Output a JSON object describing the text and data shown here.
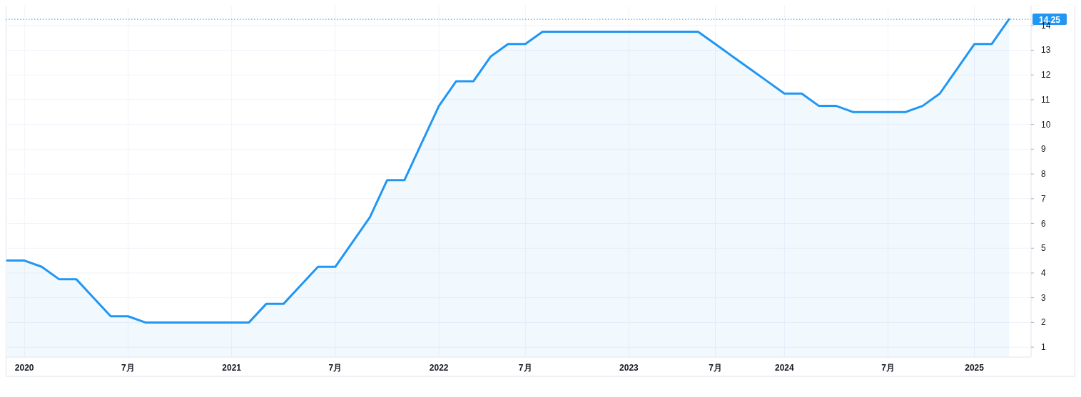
{
  "chart_data": {
    "type": "area",
    "color": "#2196f3",
    "categories": [
      null,
      "2020",
      null,
      null,
      null,
      null,
      null,
      "7月",
      null,
      null,
      null,
      null,
      null,
      "2021",
      null,
      null,
      null,
      null,
      null,
      "7月",
      null,
      null,
      null,
      null,
      null,
      "2022",
      null,
      null,
      null,
      null,
      "7月",
      null,
      null,
      null,
      null,
      null,
      "2023",
      null,
      null,
      null,
      null,
      "7月",
      null,
      null,
      null,
      "2024",
      null,
      null,
      null,
      null,
      null,
      "7月",
      null,
      null,
      null,
      null,
      "2025",
      null,
      null
    ],
    "values": [
      4.5,
      4.5,
      4.25,
      3.75,
      3.75,
      3.0,
      2.25,
      2.25,
      2.0,
      2.0,
      2.0,
      2.0,
      2.0,
      2.0,
      2.0,
      2.75,
      2.75,
      3.5,
      4.25,
      4.25,
      5.25,
      6.25,
      7.75,
      7.75,
      9.25,
      10.75,
      11.75,
      11.75,
      12.75,
      13.25,
      13.25,
      13.75,
      13.75,
      13.75,
      13.75,
      13.75,
      13.75,
      13.75,
      13.75,
      13.75,
      13.75,
      13.25,
      12.75,
      12.25,
      11.75,
      11.25,
      11.25,
      10.75,
      10.75,
      10.5,
      10.5,
      10.5,
      10.5,
      10.75,
      11.25,
      12.25,
      13.25,
      13.25,
      14.25
    ],
    "ylim": [
      0.6,
      14.8
    ],
    "yticks": [
      1,
      2,
      3,
      4,
      5,
      6,
      7,
      8,
      9,
      10,
      11,
      12,
      13,
      14
    ],
    "grid": true,
    "ref_lines": [
      {
        "axis": "y",
        "value": 14.25,
        "label": "14.25",
        "color": "#2196f3",
        "line_style": "dotted"
      }
    ]
  }
}
